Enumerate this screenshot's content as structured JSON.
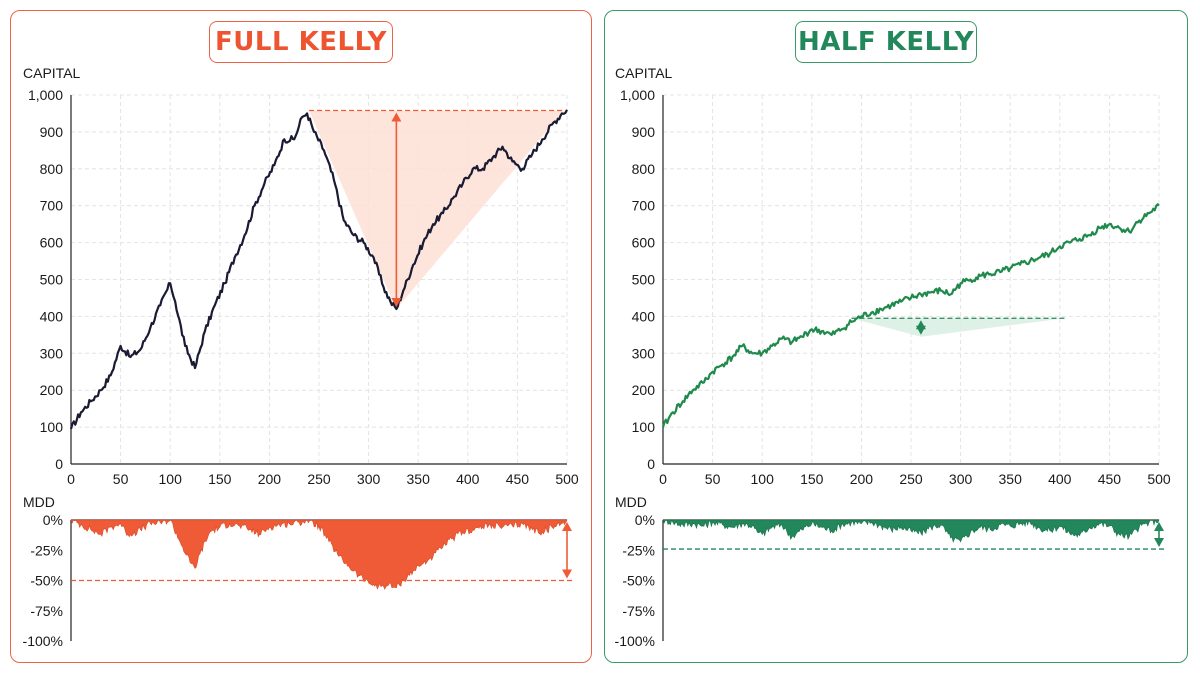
{
  "colors": {
    "full_accent": "#ef5b36",
    "full_border": "#ee6347",
    "full_line": "#1a1a33",
    "full_fill": "#fde0d6",
    "half_accent": "#22875a",
    "half_border": "#3a9a66",
    "half_line": "#1f8a4c",
    "half_fill": "#d8efe2"
  },
  "chart_data": [
    {
      "type": "line",
      "panel_title": "FULL KELLY",
      "ylabel": "CAPITAL",
      "xlabel": "",
      "xlim": [
        0,
        500
      ],
      "ylim": [
        0,
        1000
      ],
      "x_ticks": [
        0,
        50,
        100,
        150,
        200,
        250,
        300,
        350,
        400,
        450,
        500
      ],
      "y_ticks": [
        "0",
        "100",
        "200",
        "300",
        "400",
        "500",
        "600",
        "700",
        "800",
        "900",
        "1,000"
      ],
      "grid": true,
      "series": [
        {
          "x": [
            0,
            10,
            20,
            30,
            40,
            50,
            60,
            70,
            80,
            90,
            100,
            105,
            115,
            125,
            135,
            145,
            155,
            165,
            175,
            185,
            195,
            205,
            215,
            225,
            233,
            238,
            245,
            255,
            265,
            275,
            285,
            295,
            305,
            315,
            322,
            328,
            335,
            345,
            355,
            365,
            375,
            385,
            395,
            405,
            415,
            425,
            435,
            445,
            455,
            465,
            475,
            485,
            495,
            500
          ],
          "y": [
            95,
            140,
            170,
            200,
            240,
            320,
            290,
            310,
            370,
            430,
            490,
            440,
            320,
            260,
            360,
            430,
            490,
            560,
            620,
            700,
            760,
            810,
            880,
            880,
            940,
            950,
            900,
            850,
            770,
            660,
            620,
            600,
            560,
            480,
            440,
            420,
            470,
            540,
            600,
            650,
            680,
            720,
            760,
            800,
            800,
            830,
            860,
            820,
            800,
            840,
            880,
            920,
            950,
            960
          ]
        }
      ],
      "drawdown_band": {
        "peak_x": 240,
        "peak_y": 958,
        "trough_x": 328,
        "trough_y": 420,
        "recovery_x": 497
      },
      "mdd": {
        "label": "MDD",
        "y_ticks": [
          "0%",
          "-25%",
          "-50%",
          "-75%",
          "-100%"
        ],
        "ylim": [
          -100,
          0
        ],
        "reference_line": -50,
        "x": [
          0,
          10,
          20,
          30,
          40,
          50,
          55,
          60,
          70,
          80,
          90,
          100,
          110,
          120,
          125,
          130,
          140,
          150,
          160,
          170,
          180,
          190,
          200,
          210,
          220,
          230,
          238,
          250,
          260,
          270,
          280,
          290,
          300,
          310,
          320,
          328,
          335,
          345,
          355,
          365,
          375,
          385,
          395,
          405,
          415,
          425,
          435,
          445,
          455,
          465,
          475,
          485,
          495,
          500
        ],
        "values": [
          0,
          -4,
          -8,
          -12,
          -6,
          -3,
          -10,
          -12,
          -8,
          -3,
          -2,
          0,
          -18,
          -35,
          -40,
          -28,
          -10,
          -6,
          -3,
          -5,
          -8,
          -12,
          -6,
          -4,
          -3,
          -2,
          0,
          -5,
          -18,
          -30,
          -38,
          -46,
          -52,
          -55,
          -54,
          -56,
          -50,
          -42,
          -36,
          -30,
          -22,
          -15,
          -10,
          -8,
          -6,
          -4,
          -6,
          -5,
          -3,
          -8,
          -10,
          -6,
          -3,
          0
        ]
      }
    },
    {
      "type": "line",
      "panel_title": "HALF KELLY",
      "ylabel": "CAPITAL",
      "xlabel": "",
      "xlim": [
        0,
        500
      ],
      "ylim": [
        0,
        1000
      ],
      "x_ticks": [
        0,
        50,
        100,
        150,
        200,
        250,
        300,
        350,
        400,
        450,
        500
      ],
      "y_ticks": [
        "0",
        "100",
        "200",
        "300",
        "400",
        "500",
        "600",
        "700",
        "800",
        "900",
        "1,000"
      ],
      "grid": true,
      "series": [
        {
          "x": [
            0,
            10,
            20,
            30,
            40,
            50,
            60,
            70,
            80,
            90,
            100,
            110,
            120,
            130,
            140,
            150,
            160,
            170,
            180,
            190,
            200,
            210,
            220,
            230,
            240,
            250,
            260,
            270,
            280,
            290,
            300,
            310,
            320,
            330,
            340,
            350,
            360,
            370,
            380,
            390,
            400,
            410,
            420,
            430,
            440,
            450,
            460,
            470,
            480,
            490,
            500
          ],
          "y": [
            100,
            140,
            170,
            200,
            220,
            250,
            270,
            290,
            320,
            300,
            300,
            320,
            340,
            330,
            345,
            365,
            360,
            350,
            365,
            385,
            400,
            410,
            420,
            430,
            440,
            450,
            460,
            465,
            470,
            460,
            490,
            500,
            510,
            515,
            520,
            530,
            540,
            550,
            560,
            570,
            590,
            600,
            610,
            620,
            640,
            650,
            640,
            630,
            660,
            680,
            700
          ]
        }
      ],
      "drawdown_band": {
        "peak_x": 190,
        "peak_y": 395,
        "trough_x": 260,
        "trough_y": 345,
        "recovery_x": 405
      },
      "mdd": {
        "label": "MDD",
        "y_ticks": [
          "0%",
          "-25%",
          "-50%",
          "-75%",
          "-100%"
        ],
        "ylim": [
          -100,
          0
        ],
        "reference_line": -24,
        "x": [
          0,
          10,
          20,
          30,
          40,
          50,
          60,
          70,
          80,
          90,
          95,
          100,
          110,
          120,
          125,
          130,
          140,
          150,
          160,
          170,
          180,
          190,
          200,
          210,
          220,
          230,
          240,
          250,
          260,
          270,
          280,
          290,
          300,
          310,
          320,
          330,
          340,
          350,
          360,
          370,
          380,
          390,
          400,
          410,
          420,
          430,
          440,
          450,
          460,
          470,
          480,
          490,
          500
        ],
        "values": [
          0,
          -2,
          -4,
          -3,
          -5,
          -2,
          -4,
          -6,
          -3,
          -5,
          -10,
          -12,
          -6,
          -4,
          -10,
          -14,
          -8,
          -3,
          -6,
          -9,
          -4,
          -2,
          -3,
          -2,
          -5,
          -8,
          -6,
          -9,
          -11,
          -6,
          -4,
          -15,
          -18,
          -10,
          -6,
          -8,
          -4,
          -5,
          -3,
          -2,
          -7,
          -9,
          -5,
          -11,
          -13,
          -6,
          -3,
          -5,
          -12,
          -14,
          -6,
          -2,
          0
        ]
      }
    }
  ]
}
